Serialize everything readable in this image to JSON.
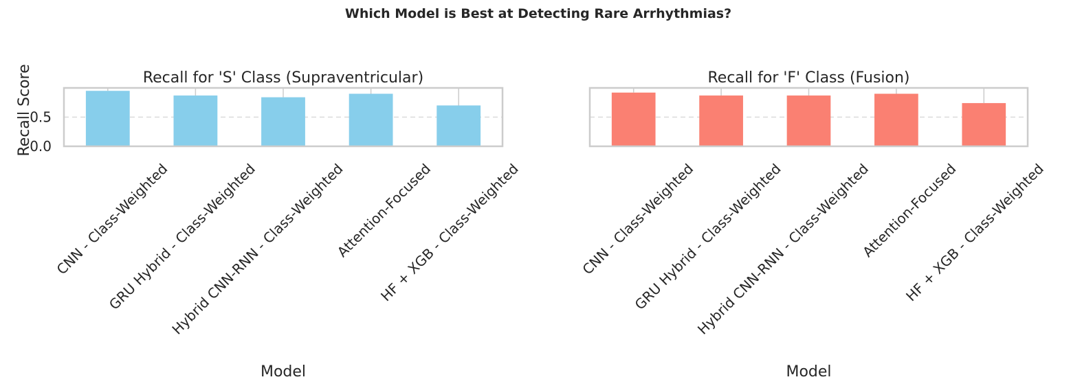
{
  "suptitle": "Which Model is Best at Detecting Rare Arrhythmias?",
  "chart_data": [
    {
      "type": "bar",
      "title": "Recall for 'S' Class (Supraventricular)",
      "xlabel": "Model",
      "ylabel": "Recall Score",
      "categories": [
        "CNN - Class-Weighted",
        "GRU Hybrid - Class-Weighted",
        "Hybrid CNN-RNN - Class-Weighted",
        "Attention-Focused",
        "HF + XGB - Class-Weighted"
      ],
      "values": [
        0.95,
        0.87,
        0.84,
        0.9,
        0.7
      ],
      "ylim": [
        0,
        1.0
      ],
      "yticks": [
        "0.0",
        "0.5"
      ],
      "color": "#87ceeb",
      "grid": "y-dashed"
    },
    {
      "type": "bar",
      "title": "Recall for 'F' Class (Fusion)",
      "xlabel": "Model",
      "ylabel": "",
      "categories": [
        "CNN - Class-Weighted",
        "GRU Hybrid - Class-Weighted",
        "Hybrid CNN-RNN - Class-Weighted",
        "Attention-Focused",
        "HF + XGB - Class-Weighted"
      ],
      "values": [
        0.92,
        0.87,
        0.87,
        0.9,
        0.74
      ],
      "ylim": [
        0,
        1.0
      ],
      "yticks": [],
      "color": "#fa8072",
      "grid": "y-dashed"
    }
  ]
}
